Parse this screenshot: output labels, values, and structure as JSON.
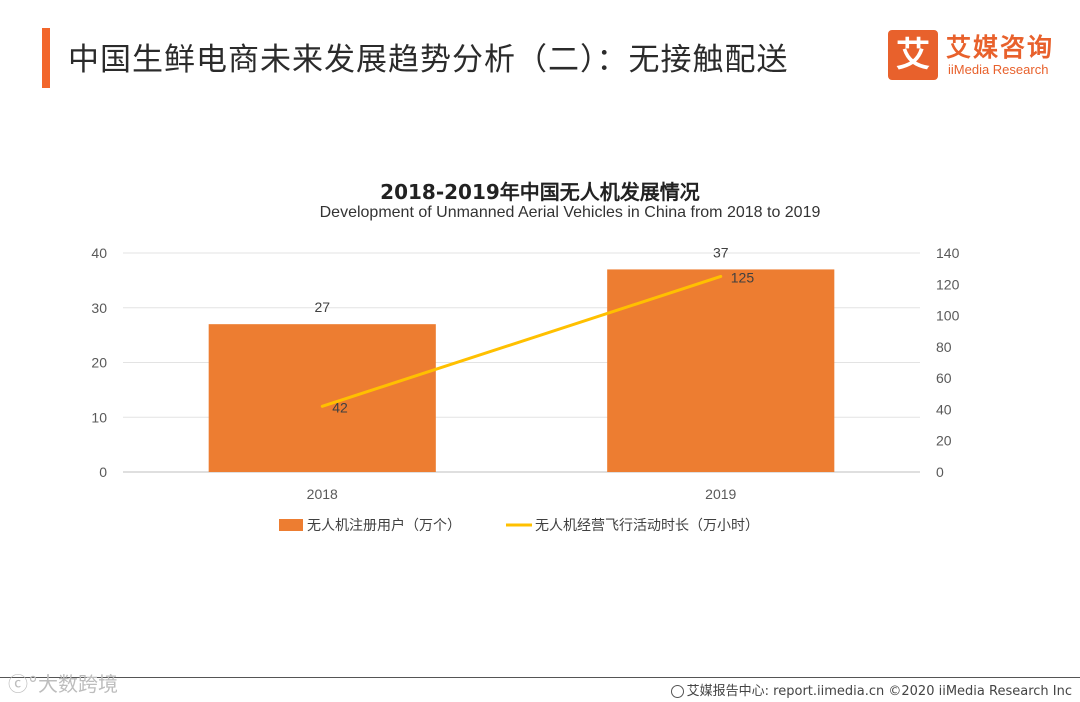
{
  "header": {
    "title": "中国生鲜电商未来发展趋势分析（二）：无接触配送"
  },
  "logo": {
    "mark": "艾",
    "cn": "艾媒咨询",
    "en": "iiMedia Research"
  },
  "colors": {
    "accent": "#f2662b",
    "bar": "#ed7d31",
    "line": "#ffc000"
  },
  "chart_data": {
    "type": "bar",
    "title": "2018-2019年中国无人机发展情况",
    "subtitle": "Development of Unmanned Aerial Vehicles in China from 2018 to 2019",
    "categories": [
      "2018",
      "2019"
    ],
    "series": [
      {
        "name": "无人机注册用户（万个）",
        "type": "bar",
        "axis": "left",
        "values": [
          27,
          37
        ]
      },
      {
        "name": "无人机经营飞行活动时长（万小时）",
        "type": "line",
        "axis": "right",
        "values": [
          42,
          125
        ]
      }
    ],
    "ylim": [
      0,
      40
    ],
    "yticks": [
      0,
      10,
      20,
      30,
      40
    ],
    "y2lim": [
      0,
      140
    ],
    "y2ticks": [
      0,
      20,
      40,
      60,
      80,
      100,
      120,
      140
    ],
    "legend_position": "bottom"
  },
  "footer": {
    "watermark": "ⓒ°大数跨境",
    "source": "艾媒报告中心: report.iimedia.cn ©2020 iiMedia Research Inc"
  }
}
